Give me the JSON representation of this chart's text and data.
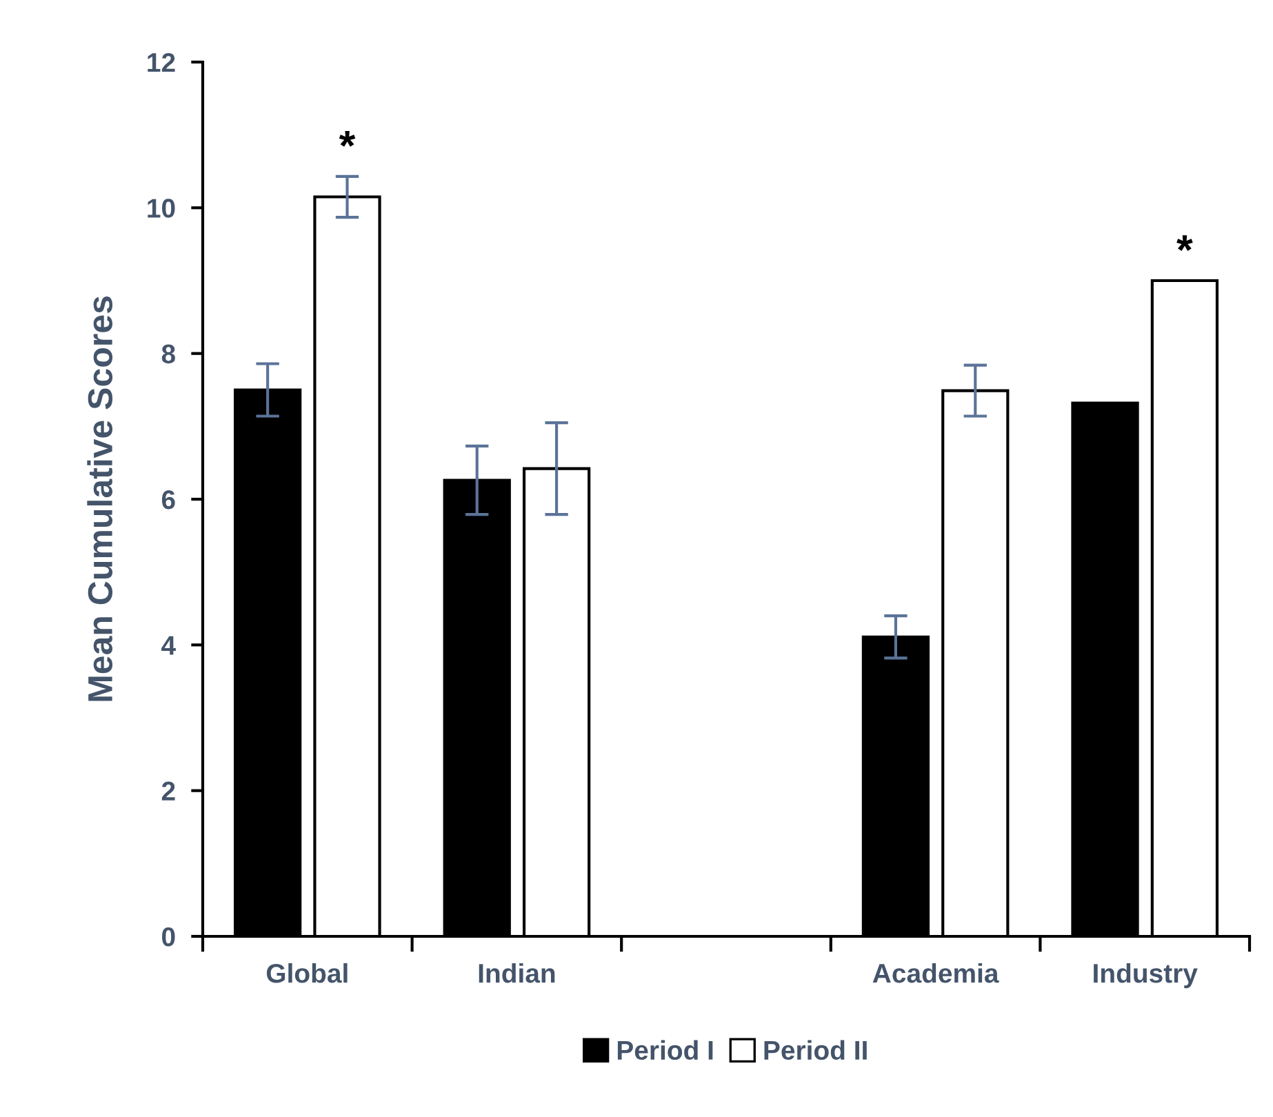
{
  "chart_data": {
    "type": "bar",
    "ylabel": "Mean Cumulative Scores",
    "categories": [
      "Global",
      "Indian",
      null,
      "Academia",
      "Industry"
    ],
    "series": [
      {
        "name": "Period I",
        "color": "#000000",
        "values": [
          7.5,
          6.26,
          null,
          4.11,
          7.32
        ],
        "errors": [
          0.36,
          0.47,
          null,
          0.29,
          null
        ]
      },
      {
        "name": "Period II",
        "color": "#ffffff",
        "values": [
          10.15,
          6.42,
          null,
          7.49,
          9.0
        ],
        "errors": [
          0.28,
          0.63,
          null,
          0.35,
          null
        ]
      }
    ],
    "ylim": [
      0,
      12
    ],
    "yticks": [
      0,
      2,
      4,
      6,
      8,
      10,
      12
    ],
    "annotations": [
      "*",
      "*"
    ],
    "grid": false,
    "legend": "bottom"
  }
}
